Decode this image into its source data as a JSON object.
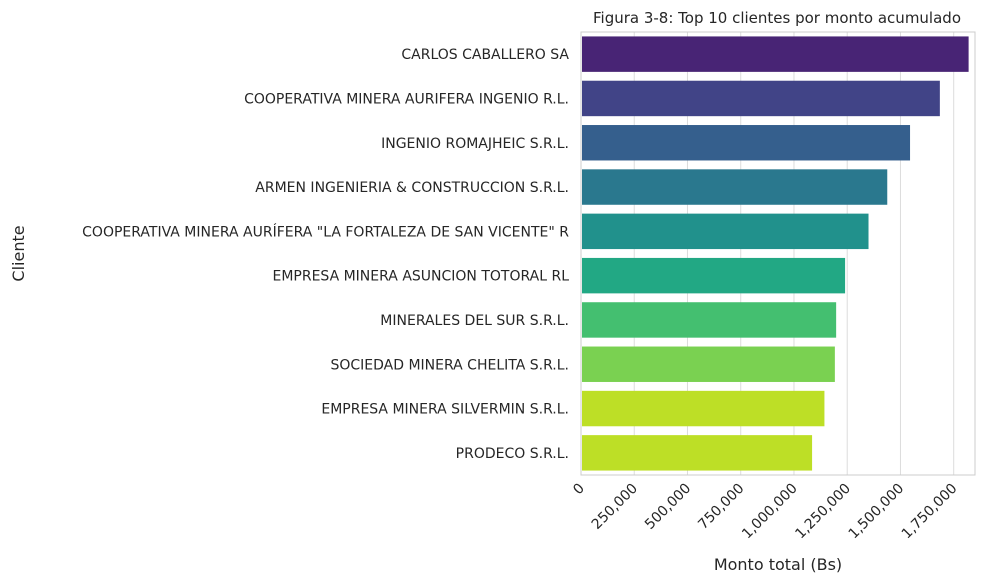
{
  "chart_data": {
    "type": "bar",
    "orientation": "horizontal",
    "title": "Figura 3-8: Top 10 clientes por monto acumulado",
    "xlabel": "Monto total (Bs)",
    "ylabel": "Cliente",
    "xlim": [
      0,
      1850000
    ],
    "xticks": [
      0,
      250000,
      500000,
      750000,
      1000000,
      1250000,
      1500000,
      1750000
    ],
    "xtick_labels": [
      "0",
      "250,000",
      "500,000",
      "750,000",
      "1,000,000",
      "1,250,000",
      "1,500,000",
      "1,750,000"
    ],
    "grid": "vertical",
    "categories": [
      "CARLOS CABALLERO SA",
      "COOPERATIVA  MINERA  AURIFERA INGENIO R.L.",
      "INGENIO ROMAJHEIC S.R.L.",
      "ARMEN INGENIERIA & CONSTRUCCION S.R.L.",
      "COOPERATIVA MINERA  AURÍFERA \"LA FORTALEZA DE SAN VICENTE\" R",
      "EMPRESA MINERA ASUNCION TOTORAL RL",
      "MINERALES DEL SUR S.R.L.",
      "SOCIEDAD MINERA CHELITA S.R.L.",
      "EMPRESA MINERA SILVERMIN S.R.L.",
      "PRODECO S.R.L."
    ],
    "values": [
      1820000,
      1685000,
      1545000,
      1438000,
      1350000,
      1240000,
      1198000,
      1192000,
      1143000,
      1085000
    ],
    "colors": [
      "#482475",
      "#414487",
      "#355f8d",
      "#2a788e",
      "#21918c",
      "#22a884",
      "#44bf70",
      "#7ad151",
      "#bddf26",
      "#bddf26"
    ]
  }
}
